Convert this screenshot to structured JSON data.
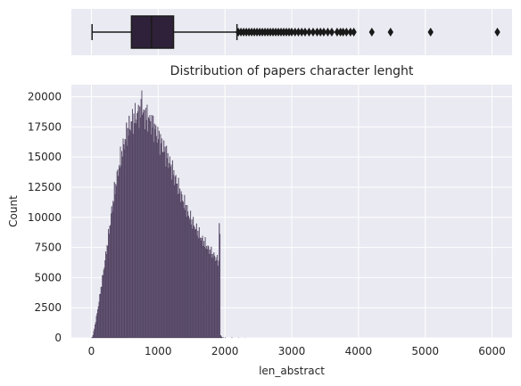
{
  "chart_data": [
    {
      "type": "box",
      "title": "",
      "xlabel": "",
      "ylabel": "",
      "xlim": [
        -300,
        6300
      ],
      "box": {
        "whisker_low": 10,
        "q1": 600,
        "median": 900,
        "q3": 1230,
        "whisker_high": 2180
      },
      "outliers": [
        2200,
        2240,
        2280,
        2320,
        2360,
        2400,
        2440,
        2480,
        2520,
        2560,
        2600,
        2640,
        2680,
        2720,
        2760,
        2800,
        2840,
        2880,
        2920,
        2960,
        3000,
        3050,
        3100,
        3150,
        3200,
        3260,
        3320,
        3380,
        3430,
        3480,
        3540,
        3600,
        3680,
        3730,
        3770,
        3820,
        3880,
        3930,
        4200,
        4480,
        5080,
        6080
      ],
      "colors": {
        "box_fill": "#2f2139",
        "edge": "#1a1a1a",
        "background": "#eaeaf2",
        "grid": "#ffffff"
      }
    },
    {
      "type": "histogram",
      "title": "Distribution of papers character lenght",
      "xlabel": "len_abstract",
      "ylabel": "Count",
      "xlim": [
        -300,
        6300
      ],
      "ylim": [
        0,
        21000
      ],
      "x_ticks": [
        0,
        1000,
        2000,
        3000,
        4000,
        5000,
        6000
      ],
      "y_ticks": [
        0,
        2500,
        5000,
        7500,
        10000,
        12500,
        15000,
        17500,
        20000
      ],
      "bin_width": 10,
      "profile_points": [
        [
          0,
          0
        ],
        [
          20,
          100
        ],
        [
          50,
          900
        ],
        [
          100,
          2500
        ],
        [
          150,
          4300
        ],
        [
          200,
          6200
        ],
        [
          250,
          8200
        ],
        [
          300,
          10300
        ],
        [
          350,
          12200
        ],
        [
          400,
          13800
        ],
        [
          450,
          15200
        ],
        [
          500,
          16300
        ],
        [
          550,
          17200
        ],
        [
          600,
          17900
        ],
        [
          650,
          18300
        ],
        [
          700,
          18600
        ],
        [
          750,
          18650
        ],
        [
          800,
          18500
        ],
        [
          850,
          18200
        ],
        [
          900,
          17800
        ],
        [
          950,
          17300
        ],
        [
          1000,
          16700
        ],
        [
          1050,
          16100
        ],
        [
          1100,
          15500
        ],
        [
          1150,
          14800
        ],
        [
          1200,
          14100
        ],
        [
          1250,
          13300
        ],
        [
          1300,
          12500
        ],
        [
          1350,
          11700
        ],
        [
          1400,
          11000
        ],
        [
          1450,
          10300
        ],
        [
          1500,
          9700
        ],
        [
          1550,
          9200
        ],
        [
          1600,
          8700
        ],
        [
          1650,
          8200
        ],
        [
          1700,
          7800
        ],
        [
          1750,
          7400
        ],
        [
          1800,
          7000
        ],
        [
          1850,
          6700
        ],
        [
          1890,
          6400
        ],
        [
          1900,
          6300
        ]
      ],
      "spikes": [
        {
          "x": 750,
          "value": 20500
        },
        {
          "x": 1910,
          "value": 9500
        },
        {
          "x": 1920,
          "value": 8600
        }
      ],
      "tail": [
        {
          "x": 1930,
          "value": 200
        },
        {
          "x": 1940,
          "value": 120
        },
        {
          "x": 1950,
          "value": 60
        },
        {
          "x": 1970,
          "value": 25
        },
        {
          "x": 2000,
          "value": 15
        },
        {
          "x": 2100,
          "value": 10
        },
        {
          "x": 2200,
          "value": 8
        },
        {
          "x": 2300,
          "value": 5
        }
      ],
      "colors": {
        "bar_fill": "#6e5f7f",
        "bar_edge": "#3a2c48",
        "background": "#eaeaf2",
        "grid": "#ffffff",
        "text": "#262626"
      }
    }
  ]
}
